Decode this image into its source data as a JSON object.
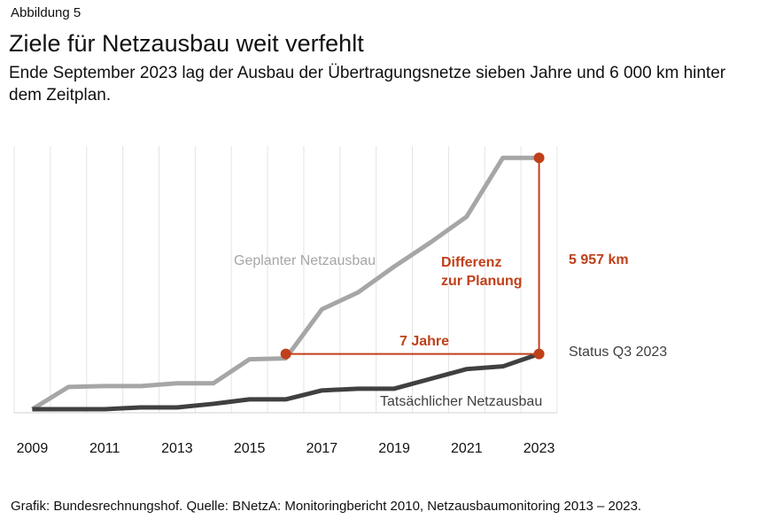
{
  "header": {
    "figure_label": "Abbildung 5",
    "title": "Ziele für Netzausbau weit verfehlt",
    "subtitle": "Ende September 2023 lag der Ausbau der Übertragungsnetze sieben Jahre und 6 000 km hinter dem Zeitplan."
  },
  "chart_data": {
    "type": "line",
    "title": "",
    "xlabel": "",
    "ylabel": "",
    "x": [
      2009,
      2010,
      2011,
      2012,
      2013,
      2014,
      2015,
      2016,
      2017,
      2018,
      2019,
      2020,
      2021,
      2022,
      2023
    ],
    "x_tick_labels": [
      "2009",
      "2011",
      "2013",
      "2015",
      "2017",
      "2019",
      "2021",
      "2023"
    ],
    "ylim": [
      0,
      8100
    ],
    "grid": "vertical",
    "series": [
      {
        "name": "Geplanter Netzausbau",
        "color": "#a6a6a6",
        "values": [
          108,
          785,
          812,
          812,
          894,
          894,
          1625,
          1652,
          3142,
          3656,
          4442,
          5173,
          5958,
          7745,
          7745
        ]
      },
      {
        "name": "Tatsächlicher Netzausbau",
        "color": "#404040",
        "values": [
          108,
          108,
          108,
          162,
          162,
          271,
          406,
          406,
          677,
          731,
          731,
          1029,
          1327,
          1408,
          1787
        ]
      }
    ],
    "annotations": {
      "color": "#c0401a",
      "years_gap_label": "7 Jahre",
      "difference_label_line1": "Differenz",
      "difference_label_line2": "zur Planung",
      "difference_value_label": "5 957 km",
      "status_label": "Status Q3 2023"
    }
  },
  "footer": {
    "source": "Grafik: Bundesrechnungshof. Quelle: BNetzA: Monitoringbericht 2010, Netzausbaumonitoring 2013 – 2023."
  }
}
